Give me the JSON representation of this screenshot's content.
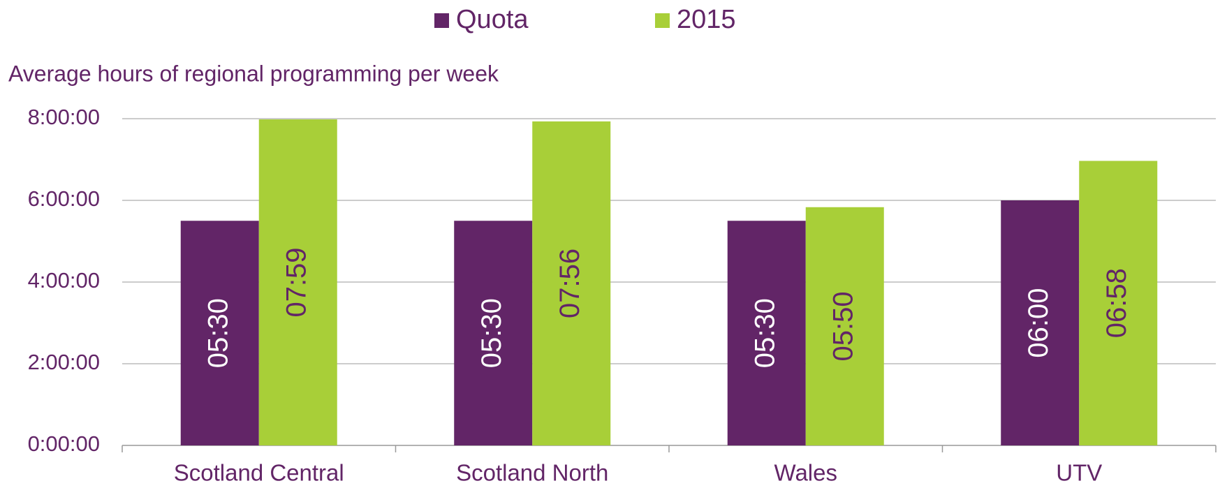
{
  "chart_data": {
    "type": "bar",
    "title": "Average hours of regional programming per week",
    "categories": [
      "Scotland Central",
      "Scotland North",
      "Wales",
      "UTV"
    ],
    "series": [
      {
        "name": "Quota",
        "color": "#622567",
        "values": [
          5.5,
          5.5,
          5.5,
          6
        ],
        "value_labels": [
          "05:30",
          "05:30",
          "05:30",
          "06:00"
        ]
      },
      {
        "name": "2015",
        "color": "#a8cf38",
        "values": [
          7.9833,
          7.9333,
          5.8333,
          6.9667
        ],
        "value_labels": [
          "07:59",
          "07:56",
          "05:50",
          "06:58"
        ]
      }
    ],
    "ylim": [
      0,
      8
    ],
    "yticks": [
      {
        "value": 0,
        "label": "0:00:00"
      },
      {
        "value": 2,
        "label": "2:00:00"
      },
      {
        "value": 4,
        "label": "4:00:00"
      },
      {
        "value": 6,
        "label": "6:00:00"
      },
      {
        "value": 8,
        "label": "8:00:00"
      }
    ],
    "grid": true
  }
}
